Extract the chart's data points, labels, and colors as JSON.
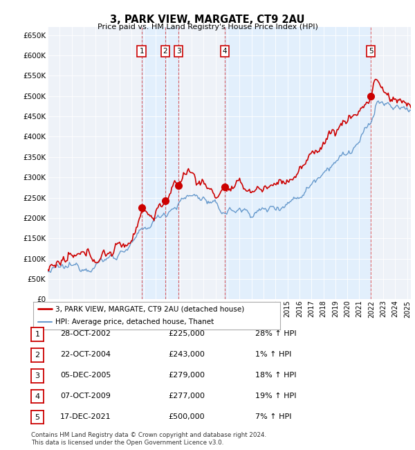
{
  "title": "3, PARK VIEW, MARGATE, CT9 2AU",
  "subtitle": "Price paid vs. HM Land Registry's House Price Index (HPI)",
  "ylim": [
    0,
    670000
  ],
  "yticks": [
    0,
    50000,
    100000,
    150000,
    200000,
    250000,
    300000,
    350000,
    400000,
    450000,
    500000,
    550000,
    600000,
    650000
  ],
  "hpi_color": "#6699cc",
  "price_color": "#cc0000",
  "vline_color": "#cc0000",
  "shade_color": "#ddeeff",
  "background_chart": "#eef2f8",
  "sale_points": [
    {
      "label": "1",
      "date_x": 2002.83,
      "price": 225000
    },
    {
      "label": "2",
      "date_x": 2004.81,
      "price": 243000
    },
    {
      "label": "3",
      "date_x": 2005.92,
      "price": 279000
    },
    {
      "label": "4",
      "date_x": 2009.77,
      "price": 277000
    },
    {
      "label": "5",
      "date_x": 2021.96,
      "price": 500000
    }
  ],
  "legend_line1_label": "3, PARK VIEW, MARGATE, CT9 2AU (detached house)",
  "legend_line2_label": "HPI: Average price, detached house, Thanet",
  "table_rows": [
    {
      "num": "1",
      "date": "28-OCT-2002",
      "price": "£225,000",
      "hpi": "28% ↑ HPI"
    },
    {
      "num": "2",
      "date": "22-OCT-2004",
      "price": "£243,000",
      "hpi": "1% ↑ HPI"
    },
    {
      "num": "3",
      "date": "05-DEC-2005",
      "price": "£279,000",
      "hpi": "18% ↑ HPI"
    },
    {
      "num": "4",
      "date": "07-OCT-2009",
      "price": "£277,000",
      "hpi": "19% ↑ HPI"
    },
    {
      "num": "5",
      "date": "17-DEC-2021",
      "price": "£500,000",
      "hpi": "7% ↑ HPI"
    }
  ],
  "footer": "Contains HM Land Registry data © Crown copyright and database right 2024.\nThis data is licensed under the Open Government Licence v3.0.",
  "xmin": 1995.0,
  "xmax": 2025.3
}
